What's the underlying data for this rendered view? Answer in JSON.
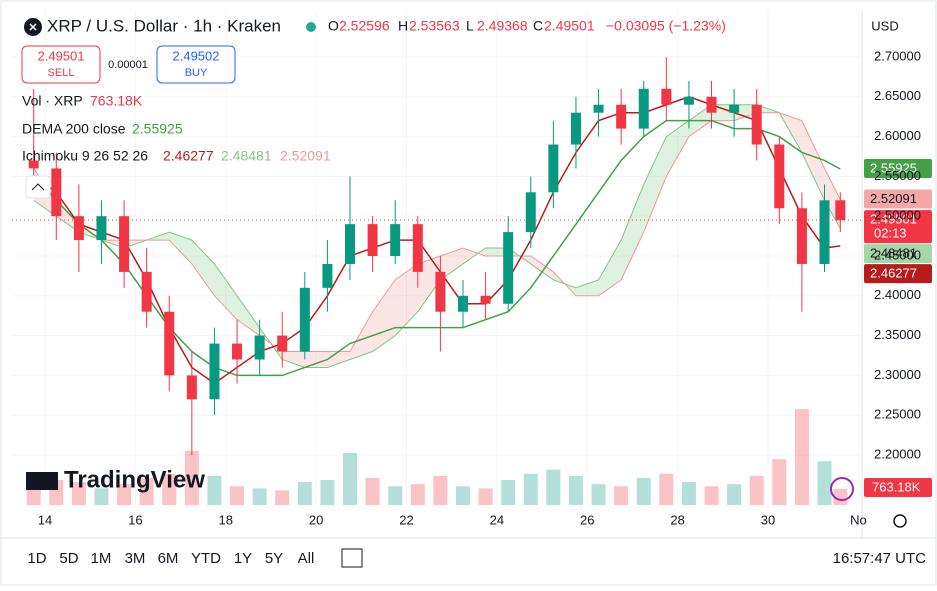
{
  "header": {
    "symbol": "XRP / U.S. Dollar · 1h · Kraken",
    "ohlc": [
      {
        "label": "O",
        "value": "2.52596"
      },
      {
        "label": "H",
        "value": "2.53563"
      },
      {
        "label": "L",
        "value": "2.49368"
      },
      {
        "label": "C",
        "value": "2.49501"
      }
    ],
    "change": "−0.03095 (−1.23%)",
    "currency": "USD"
  },
  "trade": {
    "sell_price": "2.49501",
    "sell": "SELL",
    "spread": "0.00001",
    "buy_price": "2.49502",
    "buy": "BUY"
  },
  "toolbar": {
    "ranges": [
      "1D",
      "5D",
      "1M",
      "3M",
      "6M",
      "YTD",
      "1Y",
      "5Y",
      "All"
    ],
    "time": "16:57:47 UTC"
  },
  "logo": "TradingView",
  "chart_data": {
    "type": "candlestick",
    "volume_legend": "Vol · XRP",
    "dema_legend": "DEMA 200 close",
    "ichimoku_legend": "Ichimoku 9 26 52 26",
    "x": [
      13.75,
      14.25,
      14.75,
      15.25,
      15.75,
      16.25,
      16.75,
      17.25,
      17.75,
      18.25,
      18.75,
      19.25,
      19.75,
      20.25,
      20.75,
      21.25,
      21.75,
      22.25,
      22.75,
      23.25,
      23.75,
      24.25,
      24.75,
      25.25,
      25.75,
      26.25,
      26.75,
      27.25,
      27.75,
      28.25,
      28.75,
      29.25,
      29.75,
      30.25,
      30.75,
      31.25,
      31.6
    ],
    "ohlc": [
      [
        2.57,
        2.66,
        2.54,
        2.56
      ],
      [
        2.56,
        2.58,
        2.47,
        2.5
      ],
      [
        2.5,
        2.54,
        2.43,
        2.47
      ],
      [
        2.47,
        2.52,
        2.44,
        2.5
      ],
      [
        2.5,
        2.52,
        2.41,
        2.43
      ],
      [
        2.43,
        2.46,
        2.36,
        2.38
      ],
      [
        2.38,
        2.4,
        2.28,
        2.3
      ],
      [
        2.3,
        2.33,
        2.2,
        2.27
      ],
      [
        2.27,
        2.36,
        2.25,
        2.34
      ],
      [
        2.34,
        2.37,
        2.29,
        2.32
      ],
      [
        2.32,
        2.37,
        2.3,
        2.35
      ],
      [
        2.35,
        2.38,
        2.31,
        2.33
      ],
      [
        2.33,
        2.43,
        2.32,
        2.41
      ],
      [
        2.41,
        2.47,
        2.38,
        2.44
      ],
      [
        2.44,
        2.55,
        2.42,
        2.49
      ],
      [
        2.49,
        2.5,
        2.43,
        2.45
      ],
      [
        2.45,
        2.52,
        2.44,
        2.49
      ],
      [
        2.49,
        2.5,
        2.41,
        2.43
      ],
      [
        2.43,
        2.45,
        2.33,
        2.38
      ],
      [
        2.38,
        2.42,
        2.36,
        2.4
      ],
      [
        2.4,
        2.43,
        2.37,
        2.39
      ],
      [
        2.39,
        2.5,
        2.38,
        2.48
      ],
      [
        2.48,
        2.55,
        2.46,
        2.53
      ],
      [
        2.53,
        2.62,
        2.51,
        2.59
      ],
      [
        2.59,
        2.65,
        2.56,
        2.63
      ],
      [
        2.63,
        2.66,
        2.6,
        2.64
      ],
      [
        2.64,
        2.66,
        2.59,
        2.61
      ],
      [
        2.61,
        2.67,
        2.6,
        2.66
      ],
      [
        2.66,
        2.7,
        2.62,
        2.64
      ],
      [
        2.64,
        2.67,
        2.61,
        2.65
      ],
      [
        2.65,
        2.67,
        2.61,
        2.63
      ],
      [
        2.63,
        2.66,
        2.6,
        2.64
      ],
      [
        2.64,
        2.66,
        2.57,
        2.59
      ],
      [
        2.59,
        2.6,
        2.49,
        2.51
      ],
      [
        2.51,
        2.53,
        2.38,
        2.44
      ],
      [
        2.44,
        2.54,
        2.43,
        2.52
      ],
      [
        2.52,
        2.53,
        2.48,
        2.49501
      ]
    ],
    "up_color": "#089981",
    "down_color": "#f23645",
    "volume": {
      "values": [
        900,
        1200,
        1100,
        800,
        1000,
        1300,
        1500,
        2600,
        1400,
        900,
        800,
        700,
        1100,
        1200,
        2500,
        1300,
        900,
        1000,
        1400,
        900,
        800,
        1200,
        1500,
        1700,
        1400,
        1000,
        900,
        1300,
        1500,
        1100,
        900,
        1000,
        1400,
        2200,
        4600,
        2100,
        763.18
      ],
      "value_labels": [
        null,
        null,
        null,
        null,
        null,
        null,
        null,
        null,
        null,
        null,
        null,
        null,
        null,
        null,
        null,
        null,
        null,
        null,
        null,
        null,
        null,
        null,
        null,
        null,
        null,
        null,
        null,
        null,
        null,
        null,
        null,
        null,
        null,
        null,
        null,
        null,
        "763.18K"
      ],
      "lim": [
        0,
        6000
      ],
      "color": "#f23645"
    },
    "close_color": "#f23645",
    "dema": {
      "color": "#43a047",
      "values": [
        2.55,
        2.52,
        2.49,
        2.47,
        2.44,
        2.4,
        2.36,
        2.33,
        2.31,
        2.3,
        2.3,
        2.3,
        2.31,
        2.32,
        2.34,
        2.35,
        2.36,
        2.36,
        2.36,
        2.36,
        2.37,
        2.38,
        2.41,
        2.45,
        2.49,
        2.53,
        2.57,
        2.6,
        2.62,
        2.62,
        2.62,
        2.61,
        2.61,
        2.6,
        2.58,
        2.57,
        2.55925
      ]
    },
    "tenkan": {
      "color": "#b71c1c",
      "values": [
        2.55,
        2.53,
        2.49,
        2.48,
        2.47,
        2.42,
        2.36,
        2.31,
        2.29,
        2.31,
        2.33,
        2.34,
        2.36,
        2.4,
        2.45,
        2.46,
        2.47,
        2.47,
        2.43,
        2.39,
        2.39,
        2.42,
        2.47,
        2.53,
        2.58,
        2.62,
        2.63,
        2.63,
        2.64,
        2.65,
        2.64,
        2.63,
        2.62,
        2.56,
        2.5,
        2.46,
        2.46277
      ]
    },
    "span_a": {
      "color": "#81c784",
      "values": [
        2.52,
        2.5,
        2.48,
        2.47,
        2.46,
        2.47,
        2.48,
        2.47,
        2.44,
        2.4,
        2.36,
        2.32,
        2.31,
        2.31,
        2.32,
        2.33,
        2.35,
        2.38,
        2.42,
        2.44,
        2.46,
        2.46,
        2.44,
        2.42,
        2.41,
        2.42,
        2.47,
        2.54,
        2.6,
        2.62,
        2.64,
        2.64,
        2.64,
        2.63,
        2.58,
        2.52,
        2.48481
      ]
    },
    "span_b": {
      "color": "#ef9a9a",
      "values": [
        2.56,
        2.52,
        2.49,
        2.47,
        2.47,
        2.47,
        2.47,
        2.44,
        2.4,
        2.37,
        2.35,
        2.33,
        2.33,
        2.33,
        2.33,
        2.38,
        2.42,
        2.44,
        2.45,
        2.46,
        2.45,
        2.45,
        2.45,
        2.43,
        2.4,
        2.4,
        2.42,
        2.48,
        2.55,
        2.6,
        2.62,
        2.62,
        2.63,
        2.63,
        2.62,
        2.56,
        2.52091
      ]
    },
    "countdown": "02:13",
    "xlim": [
      13.27,
      32.08
    ],
    "xticks": [
      14,
      16,
      18,
      20,
      22,
      24,
      26,
      28,
      30,
      {
        "value": 32,
        "label": "No"
      }
    ],
    "ylim": [
      2.1372,
      2.759
    ],
    "yticks": [
      {
        "value": 2.2,
        "label": "2.20000"
      },
      {
        "value": 2.25,
        "label": "2.25000"
      },
      {
        "value": 2.3,
        "label": "2.30000"
      },
      {
        "value": 2.35,
        "label": "2.35000"
      },
      {
        "value": 2.4,
        "label": "2.40000"
      },
      {
        "value": 2.45,
        "label": "2.45000"
      },
      {
        "value": 2.5,
        "label": "2.50000"
      },
      {
        "value": 2.55,
        "label": "2.55000"
      },
      {
        "value": 2.6,
        "label": "2.60000"
      },
      {
        "value": 2.65,
        "label": "2.65000"
      },
      {
        "value": 2.7,
        "label": "2.70000"
      }
    ]
  }
}
